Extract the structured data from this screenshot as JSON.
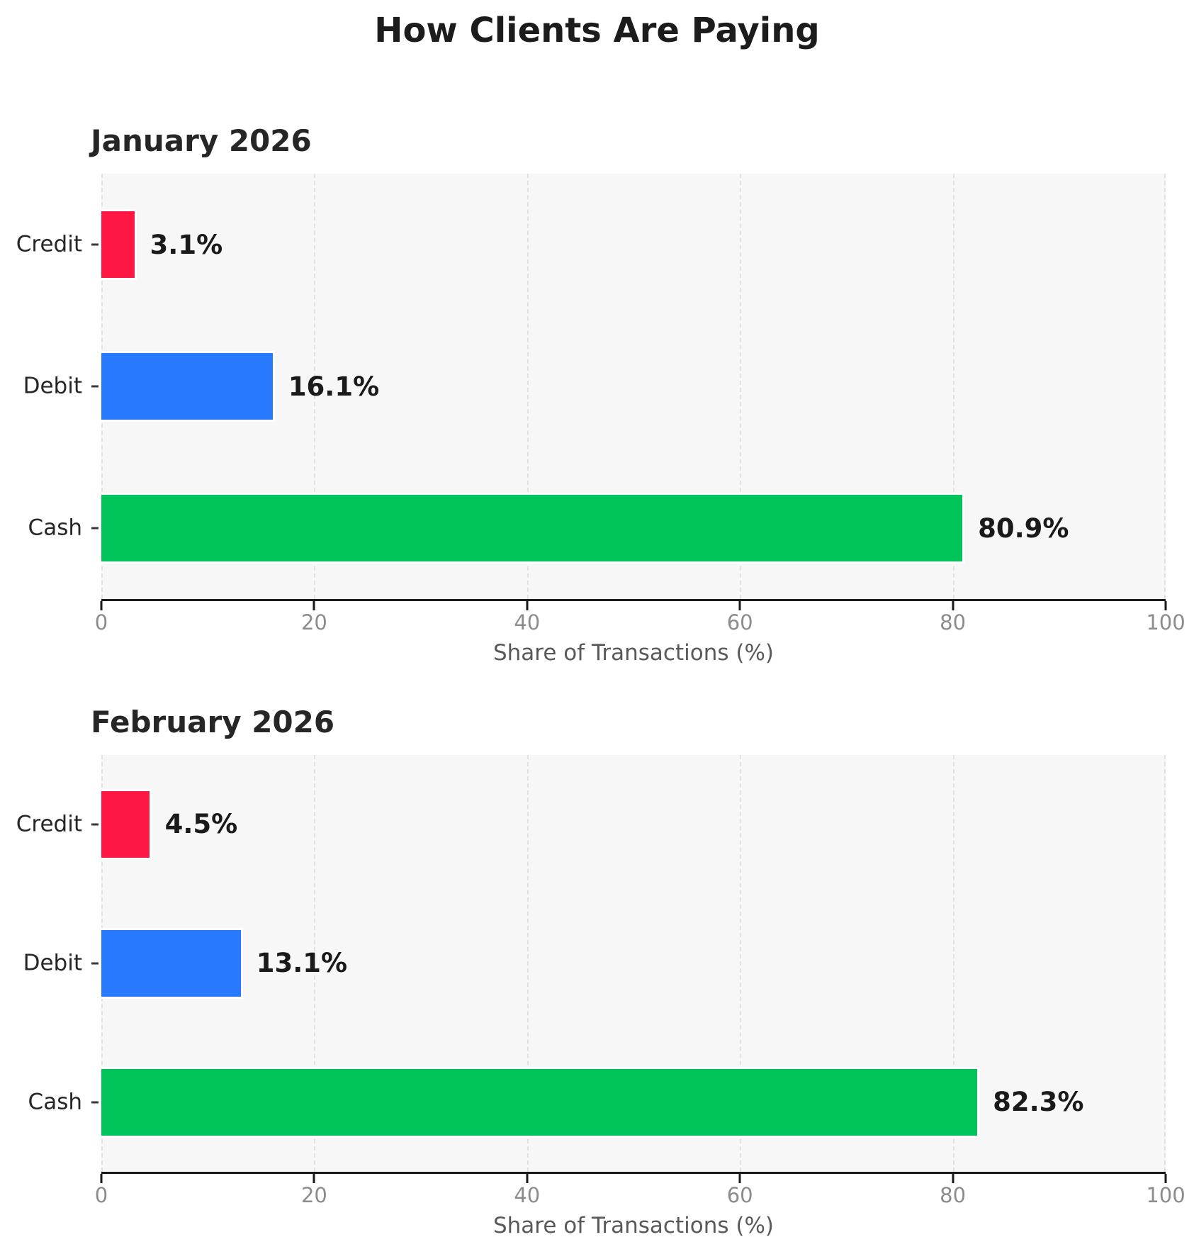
{
  "title": "How Clients Are Paying",
  "colors": {
    "credit": "#FF1744",
    "debit": "#2979FF",
    "cash": "#00C45A",
    "axis": "#1a1a1a",
    "gridline": "#e2e2e2",
    "plot_background": "#f7f7f7",
    "tick_label": "#8c8c8c"
  },
  "chart_data": [
    {
      "type": "bar",
      "orientation": "horizontal",
      "subtitle": "January 2026",
      "categories": [
        "Credit",
        "Debit",
        "Cash"
      ],
      "values": [
        3.1,
        16.1,
        80.9
      ],
      "value_labels": [
        "3.1%",
        "16.1%",
        "80.9%"
      ],
      "bar_colors": [
        "#FF1744",
        "#2979FF",
        "#00C45A"
      ],
      "xlabel": "Share of Transactions (%)",
      "xlim": [
        0,
        100
      ],
      "xticks": [
        0,
        20,
        40,
        60,
        80,
        100
      ],
      "grid": "vertical-dashed",
      "legend": "none"
    },
    {
      "type": "bar",
      "orientation": "horizontal",
      "subtitle": "February 2026",
      "categories": [
        "Credit",
        "Debit",
        "Cash"
      ],
      "values": [
        4.5,
        13.1,
        82.3
      ],
      "value_labels": [
        "4.5%",
        "13.1%",
        "82.3%"
      ],
      "bar_colors": [
        "#FF1744",
        "#2979FF",
        "#00C45A"
      ],
      "xlabel": "Share of Transactions (%)",
      "xlim": [
        0,
        100
      ],
      "xticks": [
        0,
        20,
        40,
        60,
        80,
        100
      ],
      "grid": "vertical-dashed",
      "legend": "none"
    }
  ]
}
